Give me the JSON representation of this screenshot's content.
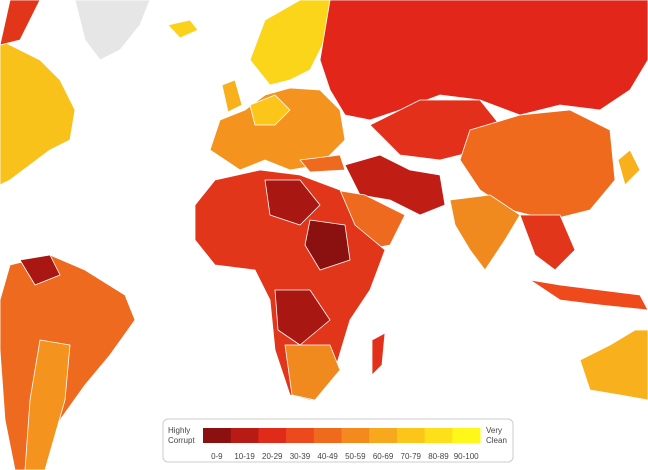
{
  "legend": {
    "low_label": "Highly Corrupt",
    "high_label": "Very Clean",
    "bins": [
      {
        "label": "0-9",
        "color": "#8b1010"
      },
      {
        "label": "10-19",
        "color": "#b81a14"
      },
      {
        "label": "20-29",
        "color": "#e02a1a"
      },
      {
        "label": "30-39",
        "color": "#ec4a1c"
      },
      {
        "label": "40-49",
        "color": "#f06a1e"
      },
      {
        "label": "50-59",
        "color": "#f48a1e"
      },
      {
        "label": "60-69",
        "color": "#f8a81c"
      },
      {
        "label": "70-79",
        "color": "#fbc51a"
      },
      {
        "label": "80-89",
        "color": "#fde01a"
      },
      {
        "label": "90-100",
        "color": "#fff71a"
      }
    ]
  }
}
